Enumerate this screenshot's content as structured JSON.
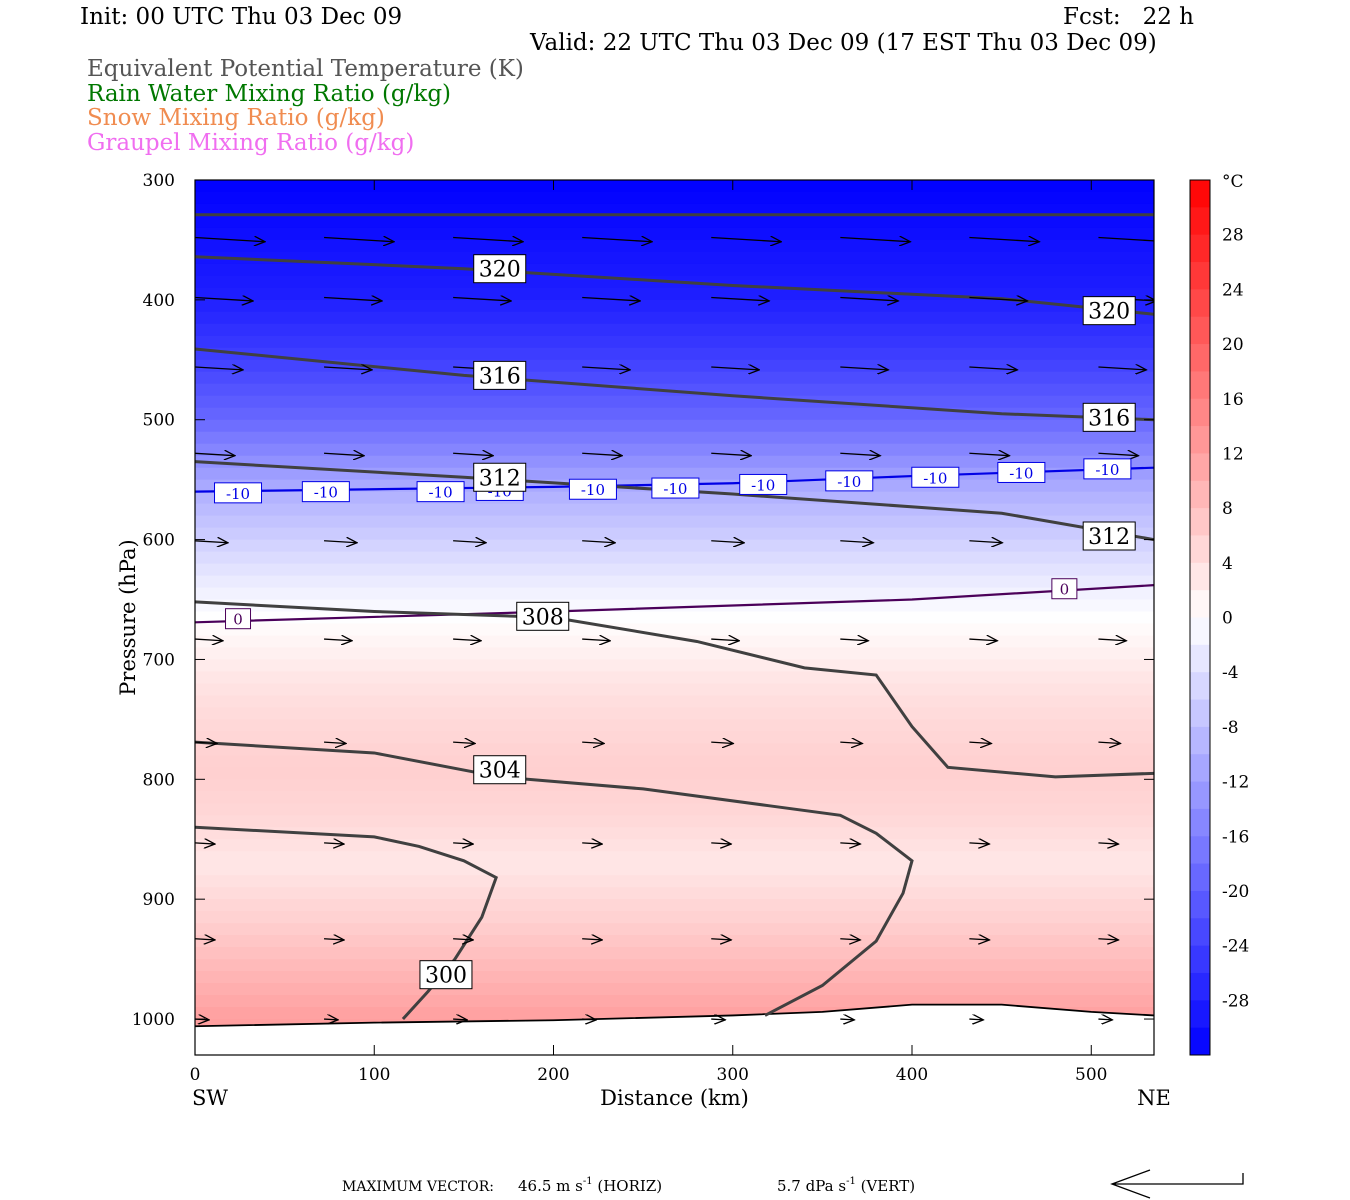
{
  "header": {
    "init": "Init: 00 UTC Thu 03 Dec 09",
    "fcst": "Fcst:   22 h",
    "valid": "Valid: 22 UTC Thu 03 Dec 09 (17 EST Thu 03 Dec 09)",
    "fields": [
      {
        "label": "Equivalent Potential Temperature (K)",
        "color": "#555555"
      },
      {
        "label": "Rain Water Mixing Ratio (g/kg)",
        "color": "#007800"
      },
      {
        "label": "Snow Mixing Ratio (g/kg)",
        "color": "#f08c50"
      },
      {
        "label": "Graupel Mixing Ratio (g/kg)",
        "color": "#f06ef0"
      }
    ]
  },
  "footer": {
    "prefix": "MAXIMUM VECTOR:",
    "horiz": "46.5 m s",
    "horiz_unit": " (HORIZ)",
    "vert": "5.7 dPa s",
    "vert_unit": " (VERT)",
    "exponent": "-1"
  },
  "chart_data": {
    "type": "heatmap",
    "xlabel": "Distance (km)",
    "ylabel": "Pressure (hPa)",
    "xlim": [
      0,
      535
    ],
    "ylim": [
      1030,
      300
    ],
    "x_ticks": [
      0,
      100,
      200,
      300,
      400,
      500
    ],
    "y_ticks": [
      300,
      400,
      500,
      600,
      700,
      800,
      900,
      1000
    ],
    "left_end_label": "SW",
    "right_end_label": "NE",
    "colorbar": {
      "unit": "°C",
      "min": -32,
      "max": 32,
      "ticks": [
        28,
        24,
        20,
        16,
        12,
        8,
        4,
        0,
        -4,
        -8,
        -12,
        -16,
        -20,
        -24,
        -28
      ]
    },
    "temperature_profile": [
      {
        "p": 300,
        "t": -32
      },
      {
        "p": 350,
        "t": -30
      },
      {
        "p": 400,
        "t": -28
      },
      {
        "p": 450,
        "t": -24
      },
      {
        "p": 500,
        "t": -19
      },
      {
        "p": 560,
        "t": -10
      },
      {
        "p": 600,
        "t": -6
      },
      {
        "p": 640,
        "t": -2
      },
      {
        "p": 680,
        "t": 1
      },
      {
        "p": 730,
        "t": 4
      },
      {
        "p": 790,
        "t": 6
      },
      {
        "p": 830,
        "t": 5
      },
      {
        "p": 870,
        "t": 3
      },
      {
        "p": 920,
        "t": 6
      },
      {
        "p": 960,
        "t": 9
      },
      {
        "p": 1000,
        "t": 12
      }
    ],
    "theta_e_contours": [
      {
        "label": "320",
        "points": [
          [
            0,
            329
          ],
          [
            535,
            329
          ]
        ]
      },
      {
        "label": "320",
        "points": [
          [
            0,
            364
          ],
          [
            150,
            374
          ],
          [
            300,
            388
          ],
          [
            450,
            399
          ],
          [
            535,
            412
          ]
        ],
        "labels_at": [
          [
            170,
            374
          ],
          [
            510,
            409
          ]
        ]
      },
      {
        "label": "316",
        "points": [
          [
            0,
            441
          ],
          [
            150,
            463
          ],
          [
            300,
            480
          ],
          [
            450,
            495
          ],
          [
            535,
            500
          ]
        ],
        "labels_at": [
          [
            170,
            463
          ],
          [
            510,
            498
          ]
        ]
      },
      {
        "label": "312",
        "points": [
          [
            0,
            535
          ],
          [
            150,
            548
          ],
          [
            300,
            562
          ],
          [
            450,
            578
          ],
          [
            535,
            600
          ]
        ],
        "labels_at": [
          [
            170,
            548
          ],
          [
            510,
            597
          ]
        ]
      },
      {
        "label": "308",
        "points": [
          [
            0,
            652
          ],
          [
            100,
            660
          ],
          [
            200,
            665
          ],
          [
            280,
            685
          ],
          [
            340,
            707
          ],
          [
            380,
            713
          ],
          [
            400,
            756
          ],
          [
            420,
            790
          ],
          [
            480,
            798
          ],
          [
            535,
            795
          ]
        ],
        "labels_at": [
          [
            194,
            664
          ]
        ]
      },
      {
        "label": "304",
        "points": [
          [
            0,
            769
          ],
          [
            100,
            778
          ],
          [
            170,
            798
          ],
          [
            250,
            808
          ],
          [
            320,
            822
          ],
          [
            360,
            830
          ],
          [
            380,
            845
          ],
          [
            400,
            868
          ],
          [
            395,
            895
          ],
          [
            380,
            935
          ],
          [
            350,
            972
          ],
          [
            318,
            997
          ]
        ],
        "labels_at": [
          [
            170,
            792
          ]
        ]
      },
      {
        "label": "300",
        "points": [
          [
            0,
            840
          ],
          [
            100,
            848
          ],
          [
            125,
            856
          ],
          [
            150,
            868
          ],
          [
            168,
            882
          ],
          [
            160,
            915
          ],
          [
            145,
            950
          ],
          [
            130,
            977
          ],
          [
            116,
            1000
          ]
        ],
        "labels_at": [
          [
            140,
            963
          ]
        ]
      }
    ],
    "isotherms": [
      {
        "label": "-10",
        "color": "#0000e6",
        "points": [
          [
            0,
            560
          ],
          [
            100,
            558
          ],
          [
            200,
            556
          ],
          [
            300,
            553
          ],
          [
            400,
            547
          ],
          [
            535,
            540
          ]
        ],
        "labels_at": [
          [
            24,
            561
          ],
          [
            73,
            560
          ],
          [
            137,
            560
          ],
          [
            170,
            559
          ],
          [
            222,
            558
          ],
          [
            268,
            557
          ],
          [
            317,
            554
          ],
          [
            365,
            551
          ],
          [
            413,
            548
          ],
          [
            461,
            544
          ],
          [
            509,
            541
          ]
        ]
      },
      {
        "label": "0",
        "color": "#4b005a",
        "points": [
          [
            0,
            669
          ],
          [
            200,
            660
          ],
          [
            400,
            650
          ],
          [
            535,
            638
          ]
        ],
        "labels_at": [
          [
            24,
            666
          ],
          [
            485,
            641
          ]
        ]
      }
    ],
    "wind_vectors": [
      {
        "p": 348,
        "x": [
          0,
          72,
          144,
          216,
          288,
          360,
          432,
          504
        ],
        "len": 70
      },
      {
        "p": 398,
        "x": [
          0,
          72,
          144,
          216,
          288,
          360,
          432,
          504
        ],
        "len": 58
      },
      {
        "p": 456,
        "x": [
          0,
          72,
          144,
          216,
          288,
          360,
          432,
          504
        ],
        "len": 48
      },
      {
        "p": 528,
        "x": [
          0,
          72,
          144,
          216,
          288,
          360,
          432,
          504
        ],
        "len": 40
      },
      {
        "p": 601,
        "x": [
          0,
          72,
          144,
          216,
          288,
          360,
          432,
          504
        ],
        "len": 33
      },
      {
        "p": 683,
        "x": [
          0,
          72,
          144,
          216,
          288,
          360,
          432,
          504
        ],
        "len": 28
      },
      {
        "p": 769,
        "x": [
          0,
          72,
          144,
          216,
          288,
          360,
          432,
          504
        ],
        "len": 22
      },
      {
        "p": 853,
        "x": [
          0,
          72,
          144,
          216,
          288,
          360,
          432,
          504
        ],
        "len": 20
      },
      {
        "p": 933,
        "x": [
          0,
          72,
          144,
          216,
          288,
          360,
          432,
          504
        ],
        "len": 20
      },
      {
        "p": 1000,
        "x": [
          0,
          72,
          144,
          216,
          288,
          360,
          432,
          504
        ],
        "len": 14
      }
    ],
    "terrain": [
      [
        0,
        1006
      ],
      [
        100,
        1003
      ],
      [
        200,
        1001
      ],
      [
        300,
        997
      ],
      [
        350,
        994
      ],
      [
        400,
        988
      ],
      [
        450,
        988
      ],
      [
        500,
        994
      ],
      [
        535,
        997
      ]
    ]
  }
}
